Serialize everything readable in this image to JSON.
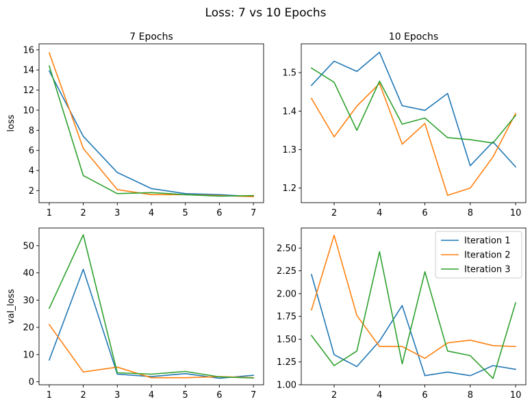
{
  "figure": {
    "title": "Loss: 7 vs 10 Epochs"
  },
  "colors": {
    "Iteration 1": "#1f77b4",
    "Iteration 2": "#ff7f0e",
    "Iteration 3": "#2ca02c"
  },
  "chart_data": [
    {
      "type": "line",
      "title": "7 Epochs",
      "xlabel": "",
      "ylabel": "loss",
      "x": [
        1,
        2,
        3,
        4,
        5,
        6,
        7
      ],
      "xticks": [
        1,
        2,
        3,
        4,
        5,
        6,
        7
      ],
      "ylim": [
        0.8,
        16.6
      ],
      "yticks": [
        2,
        4,
        6,
        8,
        10,
        12,
        14,
        16
      ],
      "ytick_labels": [
        "2",
        "4",
        "6",
        "8",
        "10",
        "12",
        "14",
        "16"
      ],
      "legend": false,
      "series": [
        {
          "key": "Iteration 1",
          "values": [
            13.9,
            7.4,
            3.8,
            2.2,
            1.7,
            1.6,
            1.4
          ]
        },
        {
          "key": "Iteration 2",
          "values": [
            15.7,
            6.2,
            2.1,
            1.6,
            1.6,
            1.5,
            1.4
          ]
        },
        {
          "key": "Iteration 3",
          "values": [
            14.4,
            3.5,
            1.7,
            1.8,
            1.6,
            1.45,
            1.5
          ]
        }
      ]
    },
    {
      "type": "line",
      "title": "10 Epochs",
      "xlabel": "",
      "ylabel": "",
      "x": [
        1,
        2,
        3,
        4,
        5,
        6,
        7,
        8,
        9,
        10
      ],
      "xticks": [
        2,
        4,
        6,
        8,
        10
      ],
      "ylim": [
        1.162,
        1.575
      ],
      "yticks": [
        1.2,
        1.3,
        1.4,
        1.5
      ],
      "ytick_labels": [
        "1.2",
        "1.3",
        "1.4",
        "1.5"
      ],
      "legend": false,
      "series": [
        {
          "key": "Iteration 1",
          "values": [
            1.467,
            1.53,
            1.503,
            1.553,
            1.414,
            1.402,
            1.446,
            1.258,
            1.32,
            1.255
          ]
        },
        {
          "key": "Iteration 2",
          "values": [
            1.433,
            1.333,
            1.413,
            1.472,
            1.314,
            1.368,
            1.181,
            1.2,
            1.281,
            1.394
          ]
        },
        {
          "key": "Iteration 3",
          "values": [
            1.512,
            1.475,
            1.35,
            1.478,
            1.366,
            1.382,
            1.331,
            1.326,
            1.317,
            1.389
          ]
        }
      ]
    },
    {
      "type": "line",
      "title": "",
      "xlabel": "",
      "ylabel": "val_loss",
      "x": [
        1,
        2,
        3,
        4,
        5,
        6,
        7
      ],
      "xticks": [
        1,
        2,
        3,
        4,
        5,
        6,
        7
      ],
      "ylim": [
        -1.1,
        56.5
      ],
      "yticks": [
        0,
        10,
        20,
        30,
        40,
        50
      ],
      "ytick_labels": [
        "0",
        "10",
        "20",
        "30",
        "40",
        "50"
      ],
      "legend": false,
      "series": [
        {
          "key": "Iteration 1",
          "values": [
            8.0,
            41.3,
            2.8,
            1.9,
            3.0,
            1.3,
            2.4
          ]
        },
        {
          "key": "Iteration 2",
          "values": [
            21.0,
            3.6,
            5.4,
            1.5,
            1.5,
            1.9,
            1.5
          ]
        },
        {
          "key": "Iteration 3",
          "values": [
            27.0,
            54.0,
            3.3,
            2.8,
            3.8,
            1.8,
            1.4
          ]
        }
      ]
    },
    {
      "type": "line",
      "title": "",
      "xlabel": "",
      "ylabel": "",
      "x": [
        1,
        2,
        3,
        4,
        5,
        6,
        7,
        8,
        9,
        10
      ],
      "xticks": [
        2,
        4,
        6,
        8,
        10
      ],
      "ylim": [
        1.0,
        2.72
      ],
      "yticks": [
        1.0,
        1.25,
        1.5,
        1.75,
        2.0,
        2.25,
        2.5
      ],
      "ytick_labels": [
        "1.00",
        "1.25",
        "1.50",
        "1.75",
        "2.00",
        "2.25",
        "2.50"
      ],
      "legend": true,
      "legend_loc": "upper right",
      "series": [
        {
          "key": "Iteration 1",
          "name": "Iteration 1",
          "values": [
            2.21,
            1.33,
            1.2,
            1.48,
            1.87,
            1.1,
            1.14,
            1.1,
            1.21,
            1.17
          ]
        },
        {
          "key": "Iteration 2",
          "name": "Iteration 2",
          "values": [
            1.82,
            2.64,
            1.76,
            1.42,
            1.42,
            1.29,
            1.46,
            1.49,
            1.43,
            1.42
          ]
        },
        {
          "key": "Iteration 3",
          "name": "Iteration 3",
          "values": [
            1.54,
            1.21,
            1.37,
            2.46,
            1.23,
            2.24,
            1.37,
            1.32,
            1.07,
            1.9
          ]
        }
      ]
    }
  ]
}
